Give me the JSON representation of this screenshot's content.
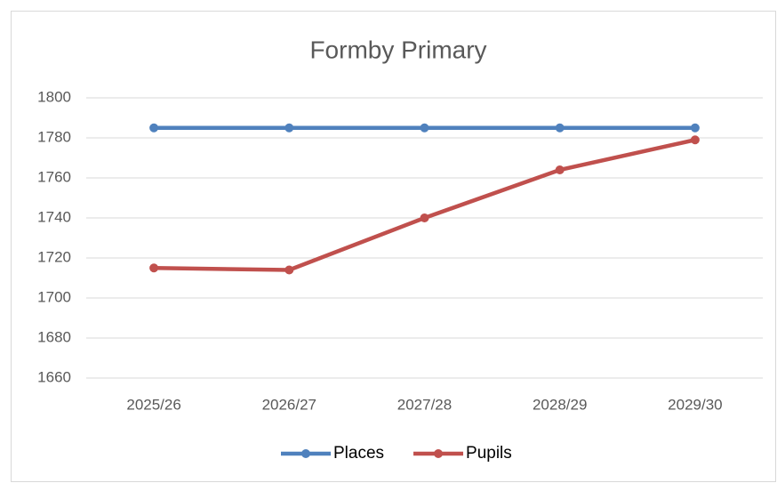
{
  "chart_data": {
    "type": "line",
    "title": "Formby Primary",
    "categories": [
      "2025/26",
      "2026/27",
      "2027/28",
      "2028/29",
      "2029/30"
    ],
    "series": [
      {
        "name": "Places",
        "color": "#4f81bd",
        "values": [
          1785,
          1785,
          1785,
          1785,
          1785
        ]
      },
      {
        "name": "Pupils",
        "color": "#c0504d",
        "values": [
          1715,
          1714,
          1740,
          1764,
          1779
        ]
      }
    ],
    "ylim": [
      1660,
      1800
    ],
    "yticks": [
      1660,
      1680,
      1700,
      1720,
      1740,
      1760,
      1780,
      1800
    ],
    "grid": true,
    "legend": "bottom"
  }
}
